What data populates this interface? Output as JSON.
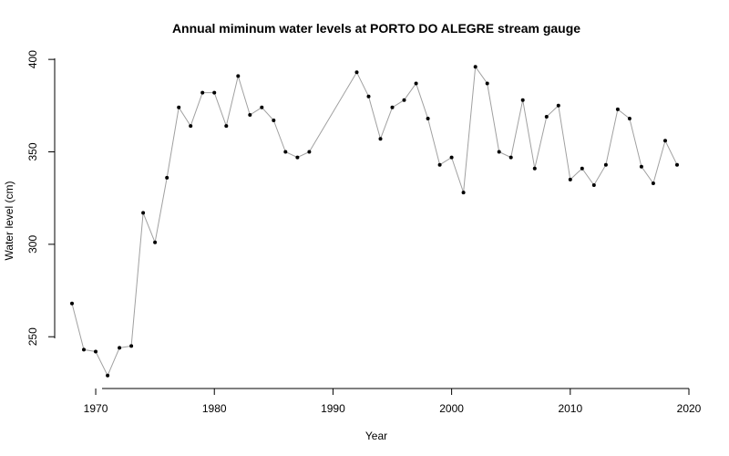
{
  "chart_data": {
    "type": "line",
    "title": "Annual miminum water levels at PORTO DO ALEGRE stream gauge",
    "xlabel": "Year",
    "ylabel": "Water level (cm)",
    "xlim": [
      1968,
      2020
    ],
    "ylim": [
      222,
      405
    ],
    "x_ticks": [
      1970,
      1980,
      1990,
      2000,
      2010,
      2020
    ],
    "y_ticks": [
      250,
      300,
      350,
      400
    ],
    "grid": false,
    "line_color": "#a0a0a0",
    "point_color": "#000000",
    "points": [
      {
        "x": 1968,
        "y": 268
      },
      {
        "x": 1969,
        "y": 243
      },
      {
        "x": 1970,
        "y": 242
      },
      {
        "x": 1971,
        "y": 229
      },
      {
        "x": 1972,
        "y": 244
      },
      {
        "x": 1973,
        "y": 245
      },
      {
        "x": 1974,
        "y": 317
      },
      {
        "x": 1975,
        "y": 301
      },
      {
        "x": 1976,
        "y": 336
      },
      {
        "x": 1977,
        "y": 374
      },
      {
        "x": 1978,
        "y": 364
      },
      {
        "x": 1979,
        "y": 382
      },
      {
        "x": 1980,
        "y": 382
      },
      {
        "x": 1981,
        "y": 364
      },
      {
        "x": 1982,
        "y": 391
      },
      {
        "x": 1983,
        "y": 370
      },
      {
        "x": 1984,
        "y": 374
      },
      {
        "x": 1985,
        "y": 367
      },
      {
        "x": 1986,
        "y": 350
      },
      {
        "x": 1987,
        "y": 347
      },
      {
        "x": 1988,
        "y": 350
      },
      {
        "x": 1992,
        "y": 393
      },
      {
        "x": 1993,
        "y": 380
      },
      {
        "x": 1994,
        "y": 357
      },
      {
        "x": 1995,
        "y": 374
      },
      {
        "x": 1996,
        "y": 378
      },
      {
        "x": 1997,
        "y": 387
      },
      {
        "x": 1998,
        "y": 368
      },
      {
        "x": 1999,
        "y": 343
      },
      {
        "x": 2000,
        "y": 347
      },
      {
        "x": 2001,
        "y": 328
      },
      {
        "x": 2002,
        "y": 396
      },
      {
        "x": 2003,
        "y": 387
      },
      {
        "x": 2004,
        "y": 350
      },
      {
        "x": 2005,
        "y": 347
      },
      {
        "x": 2006,
        "y": 378
      },
      {
        "x": 2007,
        "y": 341
      },
      {
        "x": 2008,
        "y": 369
      },
      {
        "x": 2009,
        "y": 375
      },
      {
        "x": 2010,
        "y": 335
      },
      {
        "x": 2011,
        "y": 341
      },
      {
        "x": 2012,
        "y": 332
      },
      {
        "x": 2013,
        "y": 343
      },
      {
        "x": 2014,
        "y": 373
      },
      {
        "x": 2015,
        "y": 368
      },
      {
        "x": 2016,
        "y": 342
      },
      {
        "x": 2017,
        "y": 333
      },
      {
        "x": 2018,
        "y": 356
      },
      {
        "x": 2019,
        "y": 343
      }
    ]
  }
}
